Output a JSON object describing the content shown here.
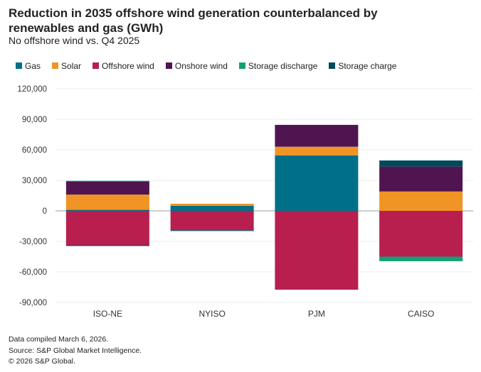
{
  "chart_data": {
    "type": "stacked-bar",
    "title": "Reduction in 2035 offshore wind generation counterbalanced by renewables and gas (GWh)",
    "subtitle": "No offshore wind vs. Q4 2025",
    "categories": [
      "ISO-NE",
      "NYISO",
      "PJM",
      "CAISO"
    ],
    "ylim": [
      -90000,
      120000
    ],
    "yticks": [
      120000,
      90000,
      60000,
      30000,
      0,
      -30000,
      -60000,
      -90000
    ],
    "ytick_labels": [
      "120,000",
      "90,000",
      "60,000",
      "30,000",
      "0",
      "-30,000",
      "-60,000",
      "-90,000"
    ],
    "grid": true,
    "legend_placement": "top",
    "series": [
      {
        "name": "Gas",
        "color": "#006f88",
        "values": [
          1000,
          5000,
          54500,
          0
        ]
      },
      {
        "name": "Solar",
        "color": "#f09425",
        "values": [
          15000,
          2000,
          8500,
          19000
        ]
      },
      {
        "name": "Offshore wind",
        "color": "#b81f4f",
        "values": [
          -33500,
          -19000,
          -77500,
          -45000
        ]
      },
      {
        "name": "Onshore wind",
        "color": "#501550",
        "values": [
          13000,
          0,
          21500,
          24500
        ]
      },
      {
        "name": "Storage discharge",
        "color": "#14a077",
        "values": [
          500,
          0,
          0,
          -4500
        ]
      },
      {
        "name": "Storage charge",
        "color": "#00495a",
        "values": [
          -1000,
          -800,
          0,
          6000
        ]
      }
    ]
  },
  "footer": [
    "Data compiled March 6, 2026.",
    "Source: S&P Global Market Intelligence.",
    "© 2026 S&P Global."
  ]
}
